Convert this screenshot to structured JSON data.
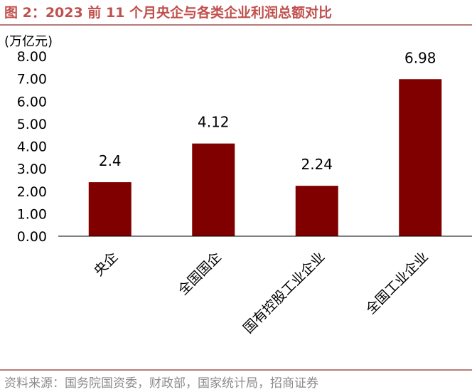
{
  "figure": {
    "title": "图 2：2023 前 11 个月央企与各类企业利润总额对比",
    "unit": "(万亿元)",
    "source": "资料来源：国务院国资委，财政部，国家统计局，招商证券"
  },
  "chart_data": {
    "type": "bar",
    "title": "图 2：2023 前 11 个月央企与各类企业利润总额对比",
    "ylabel": "(万亿元)",
    "xlabel": "",
    "categories": [
      "央企",
      "全国国企",
      "国有控股工业企业",
      "全国工业企业"
    ],
    "values": [
      2.4,
      4.12,
      2.24,
      6.98
    ],
    "value_labels": [
      "2.4",
      "4.12",
      "2.24",
      "6.98"
    ],
    "yticks": [
      "0.00",
      "1.00",
      "2.00",
      "3.00",
      "4.00",
      "5.00",
      "6.00",
      "7.00",
      "8.00"
    ],
    "ylim": [
      0,
      8
    ],
    "grid": false,
    "legend": "none",
    "bar_color": "#800000"
  }
}
